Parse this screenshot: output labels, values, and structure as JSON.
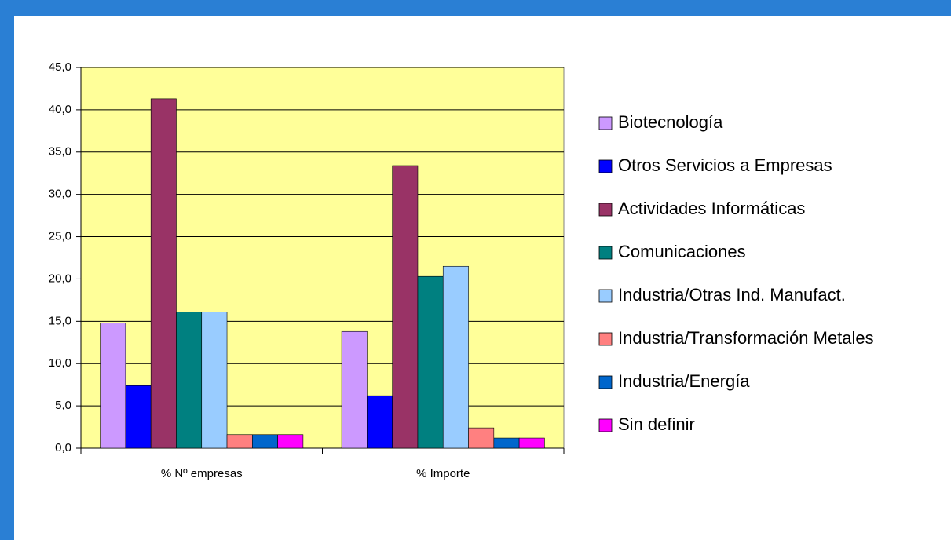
{
  "chart_data": {
    "type": "bar",
    "categories": [
      "% Nº empresas",
      "% Importe"
    ],
    "series": [
      {
        "name": "Biotecnología",
        "color": "#cc99ff",
        "values": [
          14.8,
          13.8
        ]
      },
      {
        "name": "Otros Servicios a Empresas",
        "color": "#0000ff",
        "values": [
          7.4,
          6.2
        ]
      },
      {
        "name": "Actividades Informáticas",
        "color": "#993366",
        "values": [
          41.3,
          33.4
        ]
      },
      {
        "name": "Comunicaciones",
        "color": "#008080",
        "values": [
          16.1,
          20.3
        ]
      },
      {
        "name": "Industria/Otras Ind. Manufact.",
        "color": "#99ccff",
        "values": [
          16.1,
          21.5
        ]
      },
      {
        "name": "Industria/Transformación Metales",
        "color": "#ff8080",
        "values": [
          1.6,
          2.4
        ]
      },
      {
        "name": "Industria/Energía",
        "color": "#0066cc",
        "values": [
          1.6,
          1.2
        ]
      },
      {
        "name": "Sin definir",
        "color": "#ff00ff",
        "values": [
          1.6,
          1.2
        ]
      }
    ],
    "ylim": [
      0,
      45
    ],
    "yticks": [
      {
        "value": 0,
        "label": "0,0"
      },
      {
        "value": 5,
        "label": "5,0"
      },
      {
        "value": 10,
        "label": "10,0"
      },
      {
        "value": 15,
        "label": "15,0"
      },
      {
        "value": 20,
        "label": "20,0"
      },
      {
        "value": 25,
        "label": "25,0"
      },
      {
        "value": 30,
        "label": "30,0"
      },
      {
        "value": 35,
        "label": "35,0"
      },
      {
        "value": 40,
        "label": "40,0"
      },
      {
        "value": 45,
        "label": "45,0"
      }
    ],
    "grid": true,
    "legend": "right",
    "plot_background": "#ffff99"
  }
}
